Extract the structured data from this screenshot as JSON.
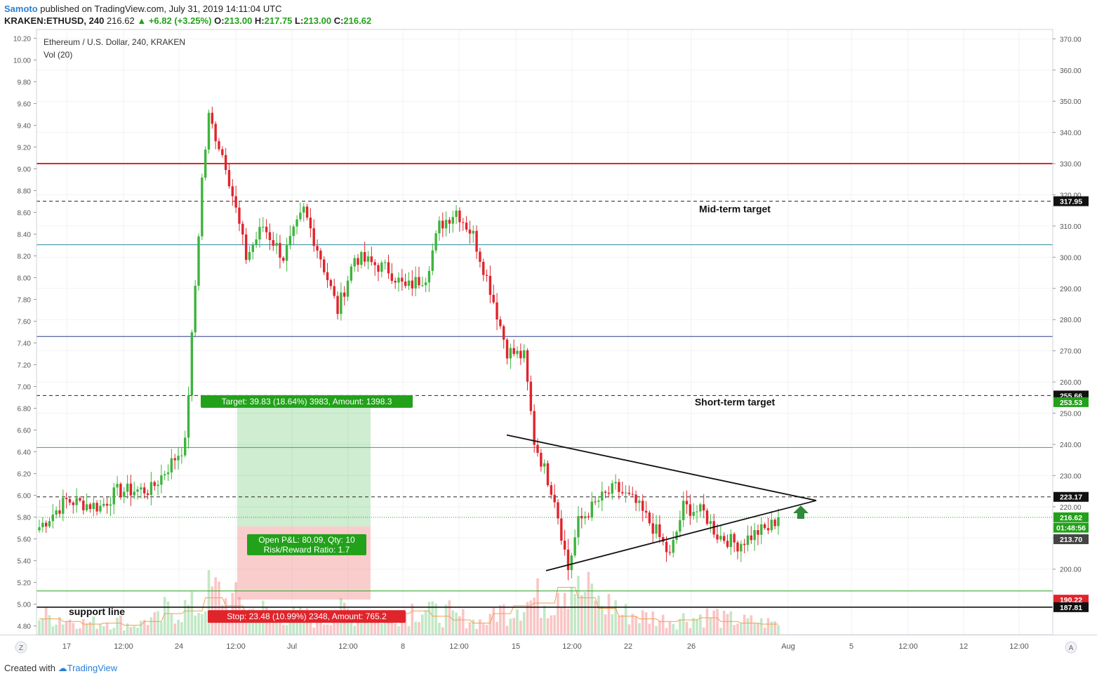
{
  "header": {
    "author": "Samoto",
    "published_text": "published on TradingView.com, July 31, 2019 14:11:04 UTC",
    "symbol": "KRAKEN:ETHUSD, 240",
    "last": "216.62",
    "change": "+6.82 (+3.25%)",
    "o_label": "O:",
    "o_value": "213.00",
    "h_label": "H:",
    "h_value": "217.75",
    "l_label": "L:",
    "l_value": "213.00",
    "c_label": "C:",
    "c_value": "216.62"
  },
  "footer": {
    "created_with": "Created with",
    "brand": "TradingView"
  },
  "chart_data": {
    "type": "candlestick",
    "title": "Ethereum / U.S. Dollar, 240, KRAKEN",
    "indicator": "Vol (20)",
    "price_axis": {
      "ylim": [
        179,
        373
      ],
      "ticks": [
        200,
        210,
        220,
        230,
        240,
        250,
        260,
        270,
        280,
        290,
        300,
        310,
        320,
        330,
        340,
        350,
        360,
        370
      ]
    },
    "volume_axis": {
      "ylim": [
        4.72,
        10.28
      ],
      "ticks": [
        "4.80",
        "5.00",
        "5.20",
        "5.40",
        "5.60",
        "5.80",
        "6.00",
        "6.20",
        "6.40",
        "6.60",
        "6.80",
        "7.00",
        "7.20",
        "7.40",
        "7.60",
        "7.80",
        "8.00",
        "8.20",
        "8.40",
        "8.60",
        "8.80",
        "9.00",
        "9.20",
        "9.40",
        "9.60",
        "9.80",
        "10.00",
        "10.20"
      ]
    },
    "x_ticks": [
      "17",
      "12:00",
      "24",
      "12:00",
      "Jul",
      "12:00",
      "8",
      "12:00",
      "15",
      "12:00",
      "22",
      "26",
      "Aug",
      "5",
      "12:00",
      "12",
      "12:00"
    ],
    "horizontal_levels": [
      {
        "price": 330.0,
        "color": "#e0242c",
        "style": "solid"
      },
      {
        "price": 317.95,
        "color": "#222222",
        "style": "dashed"
      },
      {
        "price": 304.0,
        "color": "#2a8aa0",
        "style": "solid"
      },
      {
        "price": 274.6,
        "color": "#2d3f8c",
        "style": "solid"
      },
      {
        "price": 255.66,
        "color": "#222222",
        "style": "dashed"
      },
      {
        "price": 239.0,
        "color": "#3aa56a",
        "style": "solid"
      },
      {
        "price": 223.17,
        "color": "#222222",
        "style": "dashed"
      },
      {
        "price": 216.62,
        "color": "#22a11a",
        "style": "dotted"
      },
      {
        "price": 193.0,
        "color": "#22a11a",
        "style": "solid"
      },
      {
        "price": 187.81,
        "color": "#111111",
        "style": "solid"
      }
    ],
    "axis_badges": [
      {
        "text": "317.95",
        "price": 317.95,
        "bg": "#111111"
      },
      {
        "text": "255.66",
        "price": 255.66,
        "bg": "#111111"
      },
      {
        "text": "253.53",
        "price": 253.53,
        "bg": "#22a11a"
      },
      {
        "text": "223.17",
        "price": 223.17,
        "bg": "#111111"
      },
      {
        "text": "216.62",
        "price": 216.62,
        "bg": "#22a11a"
      },
      {
        "text": "01:48:56",
        "price": 213.3,
        "bg": "#22a11a"
      },
      {
        "text": "213.70",
        "price": 209.6,
        "bg": "#444444"
      },
      {
        "text": "190.22",
        "price": 190.22,
        "bg": "#e0242c"
      },
      {
        "text": "187.81",
        "price": 187.81,
        "bg": "#111111"
      }
    ],
    "annotations": {
      "mid_term": "Mid-term target",
      "short_term": "Short-term target",
      "support": "support line",
      "target_label": "Target: 39.83 (18.64%) 3983, Amount: 1398.3",
      "stop_label": "Stop: 23.48 (10.99%) 2348, Amount: 765.2",
      "pnl_line1": "Open P&L: 80.09, Qty: 10",
      "pnl_line2": "Risk/Reward Ratio: 1.7"
    },
    "position": {
      "entry": 213.7,
      "target": 253.53,
      "stop": 190.22
    },
    "triangle": [
      [
        243.0,
        199.5
      ],
      [
        230.0,
        214.0
      ]
    ],
    "anchors": [
      [
        0,
        213.5
      ],
      [
        8,
        222.0
      ],
      [
        18,
        220.0
      ],
      [
        23,
        225.0
      ],
      [
        33,
        225.5
      ],
      [
        43,
        240.0
      ],
      [
        48,
        325.0
      ],
      [
        50,
        345.0
      ],
      [
        55,
        330.0
      ],
      [
        61,
        300.0
      ],
      [
        66,
        310.0
      ],
      [
        72,
        300.0
      ],
      [
        78,
        315.0
      ],
      [
        83,
        300.0
      ],
      [
        88,
        283.0
      ],
      [
        93,
        300.0
      ],
      [
        103,
        296.0
      ],
      [
        108,
        290.0
      ],
      [
        114,
        294.0
      ],
      [
        118,
        310.0
      ],
      [
        123,
        315.0
      ],
      [
        128,
        307.0
      ],
      [
        133,
        290.0
      ],
      [
        138,
        270.0
      ],
      [
        143,
        268.0
      ],
      [
        146,
        241.0
      ],
      [
        152,
        223.0
      ],
      [
        156,
        200.0
      ],
      [
        159,
        215.0
      ],
      [
        165,
        222.0
      ],
      [
        170,
        226.0
      ],
      [
        176,
        221.0
      ],
      [
        182,
        212.0
      ],
      [
        186,
        204.0
      ],
      [
        190,
        220.0
      ],
      [
        196,
        218.0
      ],
      [
        200,
        211.0
      ],
      [
        206,
        208.0
      ],
      [
        212,
        212.0
      ],
      [
        215,
        213.0
      ],
      [
        218,
        216.6
      ]
    ],
    "volume_profile": [
      30,
      25,
      20,
      22,
      18,
      25,
      40,
      45,
      70,
      55,
      40,
      35,
      30,
      25,
      38,
      35,
      30,
      40,
      45,
      35,
      28,
      22,
      40,
      55,
      60,
      90,
      70,
      50,
      35,
      30,
      25,
      28,
      32,
      25,
      22,
      20
    ]
  }
}
